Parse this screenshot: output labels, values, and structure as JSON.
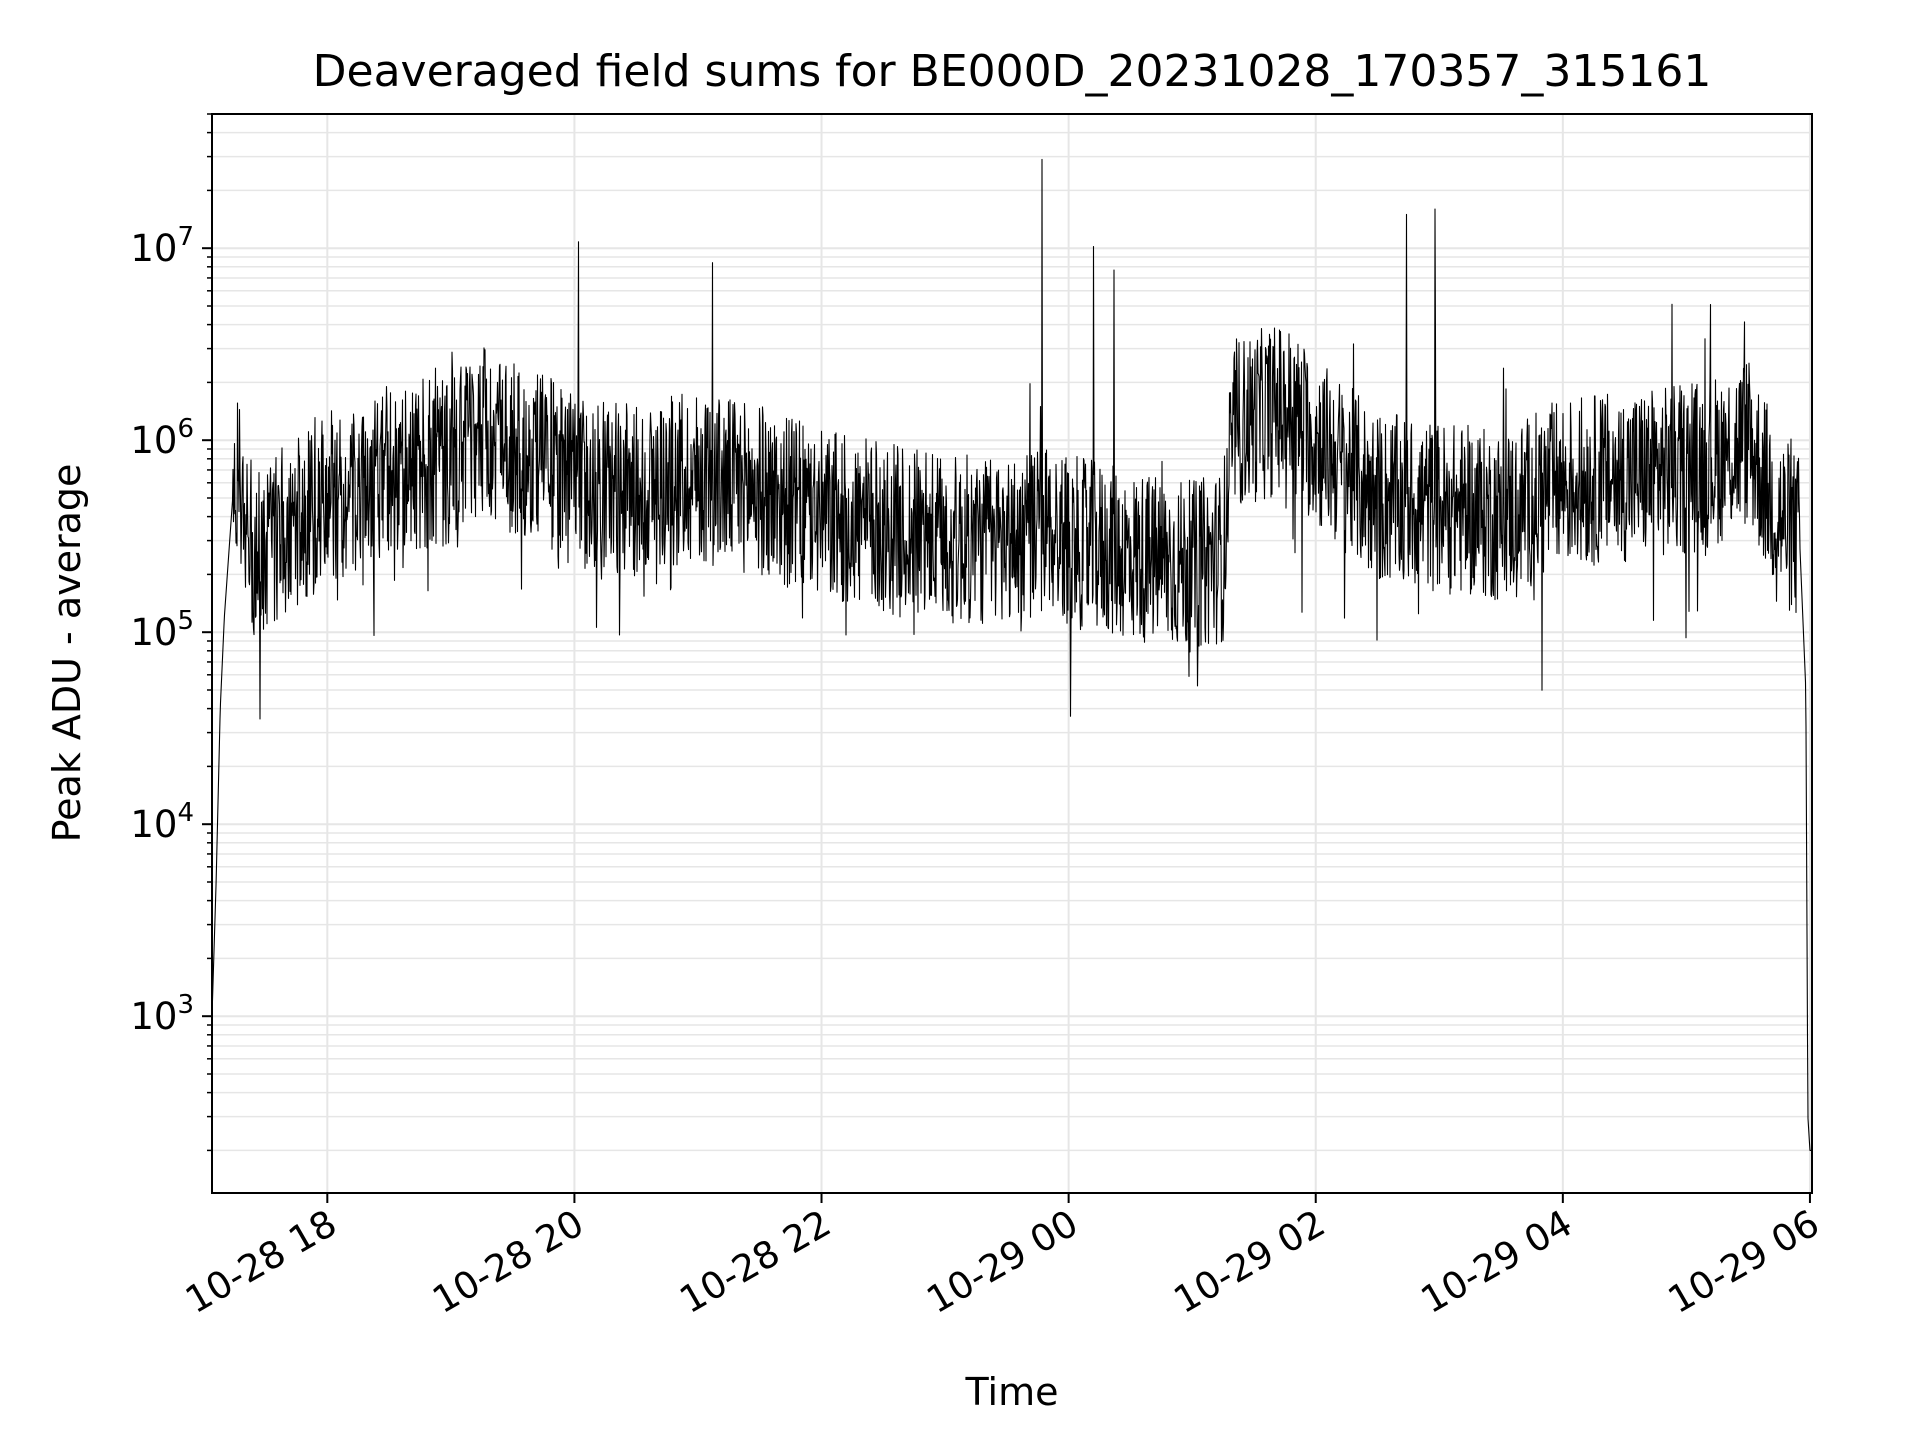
{
  "chart_data": {
    "type": "line",
    "title": "Deaveraged field sums for BE000D_20231028_170357_315161",
    "xlabel": "Time",
    "ylabel": "Peak ADU - average",
    "x_axis": {
      "kind": "datetime",
      "start": "2023-10-28T17:04",
      "end": "2023-10-29T06:01",
      "ticks": [
        {
          "value": "2023-10-28T18:00",
          "label": "10-28 18"
        },
        {
          "value": "2023-10-28T20:00",
          "label": "10-28 20"
        },
        {
          "value": "2023-10-28T22:00",
          "label": "10-28 22"
        },
        {
          "value": "2023-10-29T00:00",
          "label": "10-29 00"
        },
        {
          "value": "2023-10-29T02:00",
          "label": "10-29 02"
        },
        {
          "value": "2023-10-29T04:00",
          "label": "10-29 04"
        },
        {
          "value": "2023-10-29T06:00",
          "label": "10-29 06"
        }
      ]
    },
    "y_axis": {
      "scale": "log",
      "range": [
        120,
        50000000
      ],
      "ticks": [
        {
          "value": 1000,
          "base": "10",
          "exp": "3"
        },
        {
          "value": 10000,
          "base": "10",
          "exp": "4"
        },
        {
          "value": 100000,
          "base": "10",
          "exp": "5"
        },
        {
          "value": 1000000,
          "base": "10",
          "exp": "6"
        },
        {
          "value": 10000000,
          "base": "10",
          "exp": "7"
        }
      ]
    },
    "grid": true,
    "line_color": "#000000",
    "grid_color": "#e6e6e6",
    "series": [
      {
        "x": [
          "2023-10-28T17:04",
          "2023-10-28T17:06",
          "2023-10-28T17:08",
          "2023-10-28T17:10",
          "2023-10-28T17:15",
          "2023-10-28T17:20",
          "2023-10-28T17:25",
          "2023-10-28T17:30",
          "2023-10-28T17:40",
          "2023-10-28T17:50",
          "2023-10-28T18:00",
          "2023-10-28T18:15",
          "2023-10-28T18:30",
          "2023-10-28T18:45",
          "2023-10-28T19:00",
          "2023-10-28T19:15",
          "2023-10-28T19:30",
          "2023-10-28T19:45",
          "2023-10-28T20:00",
          "2023-10-28T20:30",
          "2023-10-28T21:00",
          "2023-10-28T21:30",
          "2023-10-28T22:00",
          "2023-10-28T22:30",
          "2023-10-28T23:00",
          "2023-10-28T23:30",
          "2023-10-28T23:50",
          "2023-10-29T00:00",
          "2023-10-29T00:30",
          "2023-10-29T01:00",
          "2023-10-29T01:15",
          "2023-10-29T01:20",
          "2023-10-29T01:45",
          "2023-10-29T02:00",
          "2023-10-29T02:30",
          "2023-10-29T03:00",
          "2023-10-29T03:30",
          "2023-10-29T04:00",
          "2023-10-29T04:30",
          "2023-10-29T05:00",
          "2023-10-29T05:15",
          "2023-10-29T05:30",
          "2023-10-29T05:45",
          "2023-10-29T05:55",
          "2023-10-29T05:58",
          "2023-10-29T05:59",
          "2023-10-29T06:00"
        ],
        "y": [
          1000,
          5000,
          40000,
          120000,
          700000,
          400000,
          250000,
          300000,
          350000,
          400000,
          500000,
          600000,
          700000,
          750000,
          800000,
          1200000,
          900000,
          800000,
          600000,
          550000,
          650000,
          550000,
          400000,
          350000,
          300000,
          300000,
          350000,
          300000,
          250000,
          220000,
          250000,
          1200000,
          1500000,
          1000000,
          500000,
          450000,
          400000,
          600000,
          650000,
          700000,
          800000,
          1000000,
          400000,
          300000,
          50000,
          300,
          200
        ]
      }
    ]
  }
}
